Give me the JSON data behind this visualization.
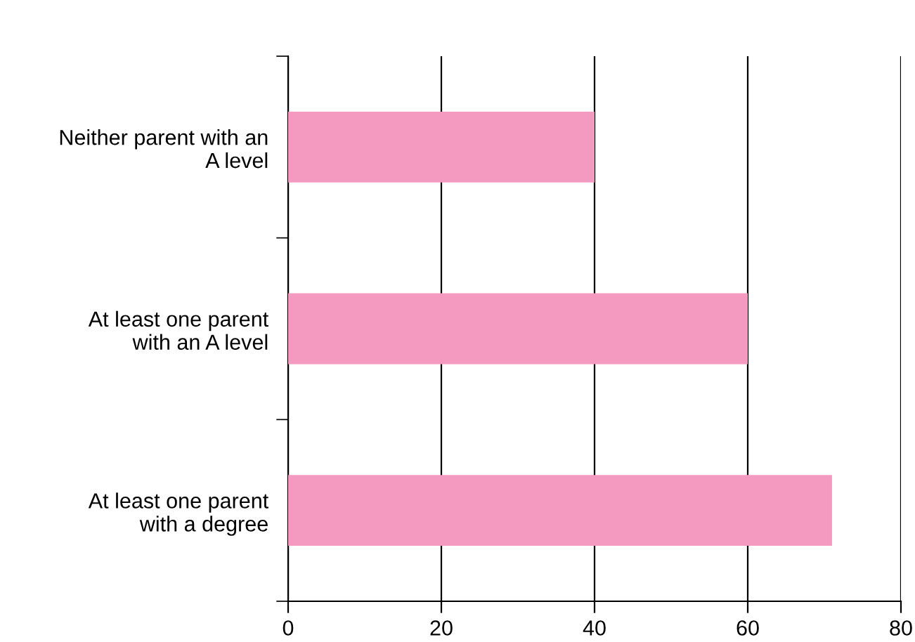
{
  "chart_data": {
    "type": "bar",
    "orientation": "horizontal",
    "categories": [
      "Neither parent with an\nA level",
      "At least one parent\nwith an A level",
      "At least one parent\nwith a degree"
    ],
    "values": [
      40,
      60,
      71
    ],
    "color": "#f49ac1",
    "xlim": [
      0,
      80
    ],
    "xticks": [
      0,
      20,
      40,
      60,
      80
    ],
    "grid": "x"
  }
}
